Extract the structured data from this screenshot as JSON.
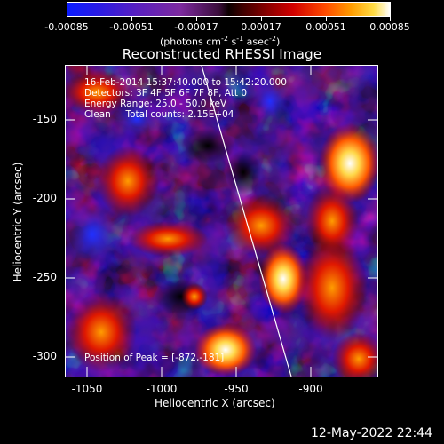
{
  "colorbar": {
    "tick_labels": [
      "-0.00085",
      "-0.00051",
      "-0.00017",
      "0.00017",
      "0.00051",
      "0.00085"
    ],
    "units_text": "(photons cm",
    "units_exp1": "-2",
    "units_mid": " s",
    "units_exp2": "-1",
    "units_mid2": " asec",
    "units_exp3": "-2",
    "units_end": ")"
  },
  "title": "Reconstructed RHESSI Image",
  "annotations": {
    "line1": "16-Feb-2014 15:37:40.000 to 15:42:20.000",
    "line2": "Detectors: 3F 4F 5F 6F 7F 8F, Att 0",
    "line3": "Energy Range: 25.0 - 50.0 keV",
    "line4": "Clean     Total counts: 2.15E+04",
    "peak": "Position of Peak = [-872,-181]"
  },
  "axes": {
    "xlabel": "Heliocentric X (arcsec)",
    "ylabel": "Heliocentric Y (arcsec)",
    "xticks": [
      "-1050",
      "-1000",
      "-950",
      "-900"
    ],
    "yticks": [
      "-150",
      "-200",
      "-250",
      "-300"
    ]
  },
  "footer": "12-May-2022 22:44",
  "colors": {
    "background": "#000000",
    "foreground": "#ffffff",
    "low_purple": "#4a1a9a",
    "high_white": "#ffffff",
    "peak_red": "#d20000"
  }
}
